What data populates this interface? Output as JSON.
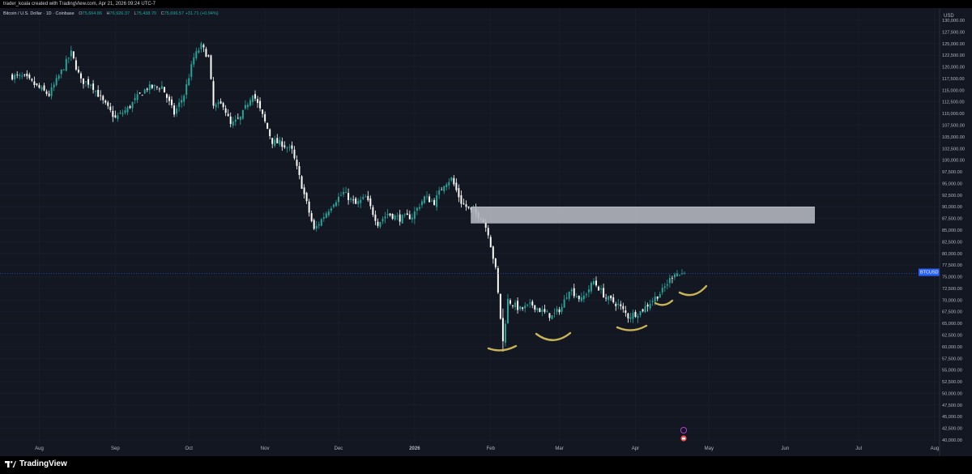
{
  "attribution": "trader_koala created with TradingView.com, Apr 21, 2026 09:24 UTC-7",
  "symbol_title": "Bitcoin / U.S. Dollar · 1D · Coinbase",
  "ohlc": {
    "open_label": "O",
    "open": "75,664.86",
    "high_label": "H",
    "high": "76,926.37",
    "low_label": "L",
    "low": "75,438.70",
    "close_label": "C",
    "close": "75,696.57",
    "change": "+31.71 (+0.04%)"
  },
  "branding": {
    "name": "TradingView"
  },
  "price_scale": {
    "currency": "USD",
    "labels": [
      "130,000.00",
      "127,500.00",
      "125,000.00",
      "122,500.00",
      "120,000.00",
      "117,500.00",
      "115,000.00",
      "112,500.00",
      "110,000.00",
      "107,500.00",
      "105,000.00",
      "102,500.00",
      "100,000.00",
      "97,500.00",
      "95,000.00",
      "92,500.00",
      "90,000.00",
      "87,500.00",
      "85,000.00",
      "82,500.00",
      "80,000.00",
      "77,500.00",
      "75,000.00",
      "72,500.00",
      "70,000.00",
      "67,500.00",
      "65,000.00",
      "62,500.00",
      "60,000.00",
      "57,500.00",
      "55,000.00",
      "52,500.00",
      "50,000.00",
      "47,500.00",
      "45,000.00",
      "42,500.00",
      "40,000.00"
    ]
  },
  "price_marker": {
    "symbol": "BTCUSD",
    "price": "75,696.57",
    "countdown": "07:35:32"
  },
  "colors": {
    "background": "#131722",
    "up": "#26a69a",
    "down": "#ffffff",
    "zone": "#b2b5be",
    "annotation": "#c9b458",
    "marker": "#2962ff"
  },
  "chart_data": {
    "type": "candlestick",
    "x_axis_labels": [
      "Aug",
      "Sep",
      "Oct",
      "Nov",
      "Dec",
      "2026",
      "Feb",
      "Mar",
      "Apr",
      "May",
      "Jun",
      "Jul",
      "Aug"
    ],
    "ylim": [
      40000,
      130000
    ],
    "close_series": [
      [
        "2025-07-21",
        118000
      ],
      [
        "2025-07-26",
        117800
      ],
      [
        "2025-07-31",
        115800
      ],
      [
        "2025-08-05",
        114000
      ],
      [
        "2025-08-10",
        119000
      ],
      [
        "2025-08-14",
        123000
      ],
      [
        "2025-08-18",
        117000
      ],
      [
        "2025-08-22",
        116500
      ],
      [
        "2025-08-27",
        112500
      ],
      [
        "2025-09-01",
        109000
      ],
      [
        "2025-09-06",
        111000
      ],
      [
        "2025-09-10",
        113500
      ],
      [
        "2025-09-14",
        115500
      ],
      [
        "2025-09-20",
        115800
      ],
      [
        "2025-09-25",
        110000
      ],
      [
        "2025-09-29",
        114000
      ],
      [
        "2025-10-03",
        122000
      ],
      [
        "2025-10-06",
        124500
      ],
      [
        "2025-10-09",
        122000
      ],
      [
        "2025-10-11",
        111500
      ],
      [
        "2025-10-15",
        112000
      ],
      [
        "2025-10-18",
        107500
      ],
      [
        "2025-10-22",
        109000
      ],
      [
        "2025-10-27",
        114500
      ],
      [
        "2025-10-31",
        109500
      ],
      [
        "2025-11-04",
        104000
      ],
      [
        "2025-11-08",
        103500
      ],
      [
        "2025-11-12",
        102000
      ],
      [
        "2025-11-16",
        94500
      ],
      [
        "2025-11-21",
        85000
      ],
      [
        "2025-11-25",
        88000
      ],
      [
        "2025-11-29",
        91000
      ],
      [
        "2025-12-03",
        93000
      ],
      [
        "2025-12-08",
        90500
      ],
      [
        "2025-12-12",
        92000
      ],
      [
        "2025-12-17",
        86500
      ],
      [
        "2025-12-21",
        88500
      ],
      [
        "2025-12-26",
        87500
      ],
      [
        "2025-12-31",
        88000
      ],
      [
        "2026-01-05",
        92000
      ],
      [
        "2026-01-09",
        91000
      ],
      [
        "2026-01-13",
        95000
      ],
      [
        "2026-01-16",
        96000
      ],
      [
        "2026-01-20",
        91000
      ],
      [
        "2026-01-24",
        89000
      ],
      [
        "2026-01-28",
        88000
      ],
      [
        "2026-01-31",
        84500
      ],
      [
        "2026-02-03",
        76500
      ],
      [
        "2026-02-06",
        61000
      ],
      [
        "2026-02-08",
        70000
      ],
      [
        "2026-02-13",
        68000
      ],
      [
        "2026-02-18",
        69000
      ],
      [
        "2026-02-22",
        67500
      ],
      [
        "2026-02-26",
        66500
      ],
      [
        "2026-03-02",
        68500
      ],
      [
        "2026-03-05",
        72500
      ],
      [
        "2026-03-10",
        70000
      ],
      [
        "2026-03-15",
        74000
      ],
      [
        "2026-03-20",
        70500
      ],
      [
        "2026-03-25",
        69000
      ],
      [
        "2026-03-29",
        66500
      ],
      [
        "2026-04-03",
        67500
      ],
      [
        "2026-04-07",
        69500
      ],
      [
        "2026-04-12",
        72000
      ],
      [
        "2026-04-17",
        76000
      ],
      [
        "2026-04-19",
        75500
      ],
      [
        "2026-04-21",
        75696.57
      ]
    ],
    "zone": {
      "from": "2026-01-24",
      "to": "2026-06-13",
      "price_low": 86500,
      "price_high": 90000
    }
  }
}
